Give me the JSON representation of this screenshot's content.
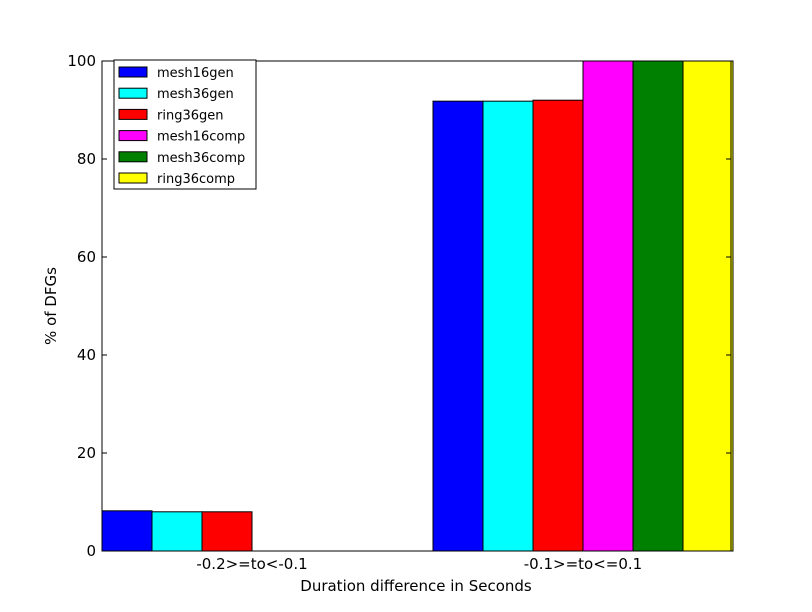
{
  "chart_data": {
    "type": "bar",
    "title": "",
    "xlabel": "Duration difference in Seconds",
    "ylabel": "% of DFGs",
    "ylim": [
      0,
      100
    ],
    "yticks": [
      0,
      20,
      40,
      60,
      80,
      100
    ],
    "grid": false,
    "legend_position": "top-left",
    "categories": [
      "-0.2>=to<-0.1",
      "-0.1>=to<=0.1"
    ],
    "series": [
      {
        "name": "mesh16gen",
        "color": "#0000ff",
        "values": [
          8.2,
          91.8
        ]
      },
      {
        "name": "mesh36gen",
        "color": "#00ffff",
        "values": [
          8.0,
          91.8
        ]
      },
      {
        "name": "ring36gen",
        "color": "#ff0000",
        "values": [
          8.0,
          92.0
        ]
      },
      {
        "name": "mesh16comp",
        "color": "#ff00ff",
        "values": [
          0,
          100
        ]
      },
      {
        "name": "mesh36comp",
        "color": "#008000",
        "values": [
          0,
          100
        ]
      },
      {
        "name": "ring36comp",
        "color": "#ffff00",
        "values": [
          0,
          100
        ]
      }
    ]
  }
}
